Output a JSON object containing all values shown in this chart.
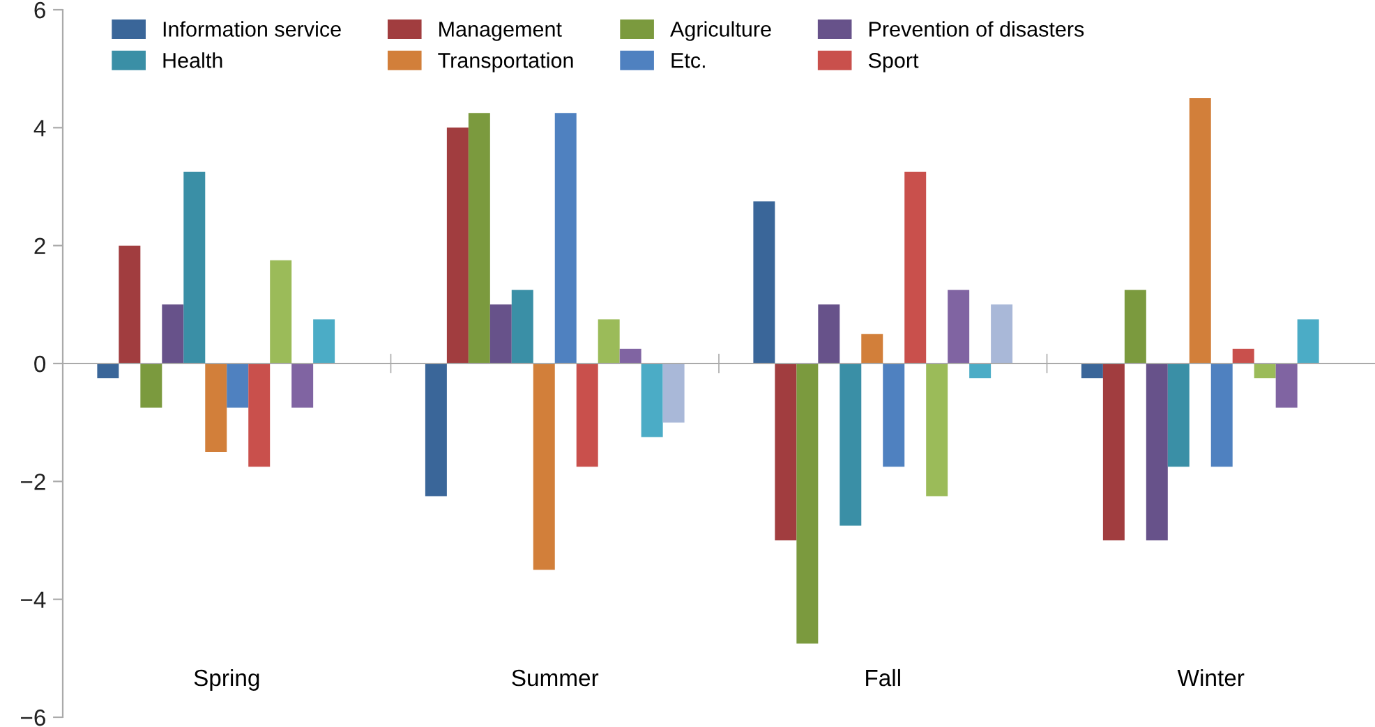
{
  "chart_data": {
    "type": "bar",
    "categories": [
      "Spring",
      "Summer",
      "Fall",
      "Winter"
    ],
    "series": [
      {
        "name": "Information service",
        "color": "#3a6699",
        "values": [
          -0.25,
          -2.25,
          2.75,
          -0.25
        ]
      },
      {
        "name": "Management",
        "color": "#a13d3f",
        "values": [
          2,
          4,
          -3,
          -3
        ]
      },
      {
        "name": "Agriculture",
        "color": "#7b9a3e",
        "values": [
          -0.75,
          4.25,
          -4.75,
          1.25
        ]
      },
      {
        "name": "Prevention of disasters",
        "color": "#67528a",
        "values": [
          1,
          1,
          1,
          -3
        ]
      },
      {
        "name": "Health",
        "color": "#3a8fa6",
        "values": [
          3.25,
          1.25,
          -2.75,
          -1.75
        ]
      },
      {
        "name": "Transportation",
        "color": "#d27f3a",
        "values": [
          -1.5,
          -3.5,
          0.5,
          4.5
        ]
      },
      {
        "name": "Etc.",
        "color": "#4f81c0",
        "values": [
          -0.75,
          4.25,
          -1.75,
          -1.75
        ]
      },
      {
        "name": "Sport",
        "color": "#c9504c",
        "values": [
          -1.75,
          -1.75,
          3.25,
          0.25
        ]
      },
      {
        "color": "#9bbb59",
        "values": [
          1.75,
          0.75,
          -2.25,
          -0.25
        ]
      },
      {
        "color": "#8064a2",
        "values": [
          -0.75,
          0.25,
          1.25,
          -0.75
        ]
      },
      {
        "color": "#4bacc6",
        "values": [
          0.75,
          -1.25,
          -0.25,
          0.75
        ]
      },
      {
        "color": "#a9b8d8",
        "values": [
          0,
          -1,
          1,
          0
        ]
      }
    ],
    "ylim": [
      -6,
      6
    ],
    "yticks": [
      {
        "value": -6,
        "label": "−6"
      },
      {
        "value": -4,
        "label": "−4"
      },
      {
        "value": -2,
        "label": "−2"
      },
      0,
      2,
      4,
      6
    ],
    "legend": "top left"
  }
}
